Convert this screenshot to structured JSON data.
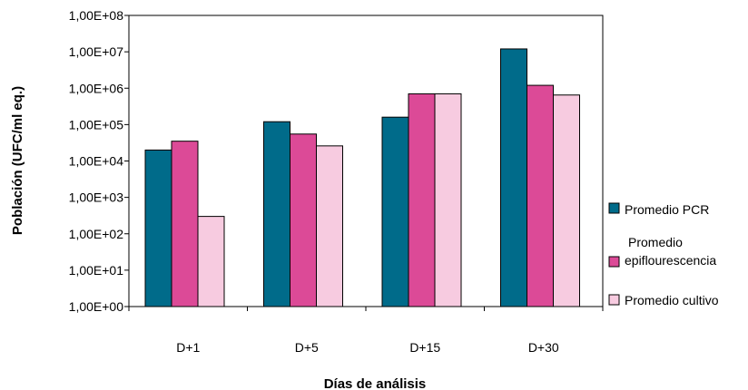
{
  "chart_data": {
    "type": "bar",
    "title": "",
    "xlabel": "Días de análisis",
    "ylabel": "Población (UFC/ml eq.)",
    "y_scale": "log",
    "ylim": [
      1,
      100000000
    ],
    "y_ticks": [
      {
        "value": 1,
        "label": "1,00E+00"
      },
      {
        "value": 10,
        "label": "1,00E+01"
      },
      {
        "value": 100,
        "label": "1,00E+02"
      },
      {
        "value": 1000,
        "label": "1,00E+03"
      },
      {
        "value": 10000,
        "label": "1,00E+04"
      },
      {
        "value": 100000,
        "label": "1,00E+05"
      },
      {
        "value": 1000000,
        "label": "1,00E+06"
      },
      {
        "value": 10000000,
        "label": "1,00E+07"
      },
      {
        "value": 100000000,
        "label": "1,00E+08"
      }
    ],
    "categories": [
      "D+1",
      "D+5",
      "D+15",
      "D+30"
    ],
    "series": [
      {
        "name": "Promedio PCR",
        "color": "#006b8a",
        "values": [
          20000,
          120000,
          160000,
          12000000
        ]
      },
      {
        "name": "Promedio epiflourescencia",
        "legend_lines": [
          "Promedio",
          "epiflourescencia"
        ],
        "color": "#dc4a97",
        "values": [
          35000,
          55000,
          700000,
          1200000
        ]
      },
      {
        "name": "Promedio cultivo",
        "color": "#f7cbe0",
        "values": [
          300,
          26000,
          700000,
          650000
        ]
      }
    ],
    "grid": false,
    "legend_position": "right"
  }
}
